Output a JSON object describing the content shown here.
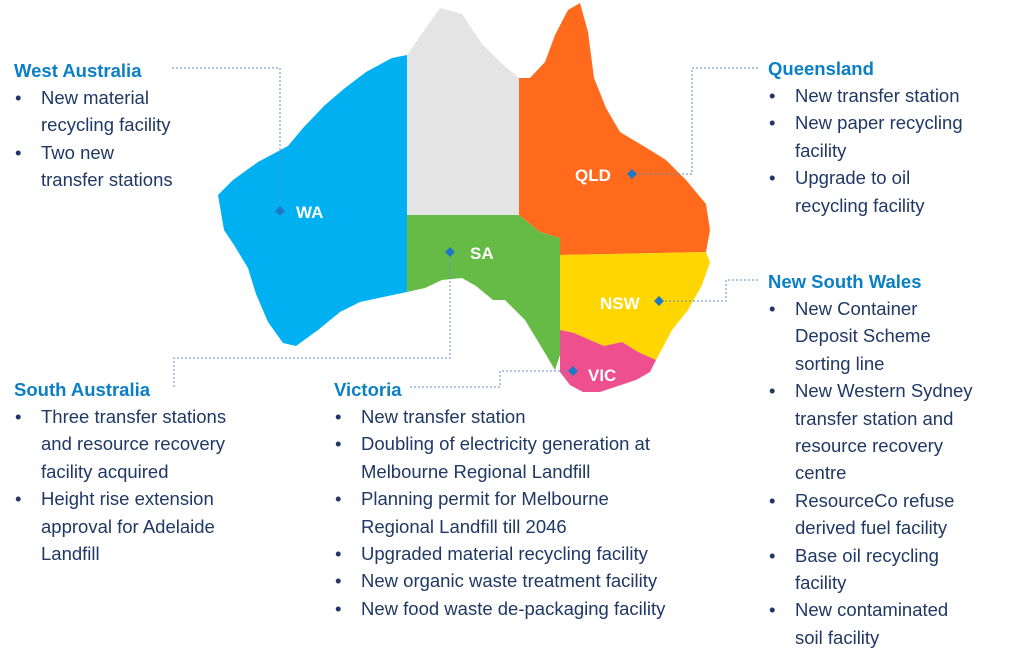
{
  "colors": {
    "wa": "#00b0f0",
    "nt": "#e4e4e4",
    "qld": "#ff6a1c",
    "sa": "#66bb46",
    "nsw": "#ffd600",
    "vic": "#ee4f8e",
    "marker": "#1f77c8",
    "leader": "#5a8fc4",
    "title": "#0a7fc6",
    "text": "#1f3864"
  },
  "states": {
    "wa": "WA",
    "qld": "QLD",
    "sa": "SA",
    "nsw": "NSW",
    "vic": "VIC"
  },
  "west_australia": {
    "title": "West Australia",
    "items": [
      [
        "New material",
        "recycling facility"
      ],
      [
        "Two new",
        "transfer stations"
      ]
    ]
  },
  "queensland": {
    "title": "Queensland",
    "items": [
      [
        "New transfer station"
      ],
      [
        "New paper recycling",
        "facility"
      ],
      [
        "Upgrade to oil",
        "recycling facility"
      ]
    ]
  },
  "new_south_wales": {
    "title": "New South Wales",
    "items": [
      [
        "New Container",
        "Deposit Scheme",
        "sorting line"
      ],
      [
        "New Western Sydney",
        "transfer station and",
        "resource recovery",
        "centre"
      ],
      [
        "ResourceCo refuse",
        "derived fuel facility"
      ],
      [
        "Base oil recycling",
        "facility"
      ],
      [
        "New contaminated",
        "soil facility"
      ]
    ]
  },
  "south_australia": {
    "title": "South Australia",
    "items": [
      [
        "Three transfer stations",
        "and resource recovery",
        "facility acquired"
      ],
      [
        "Height rise extension",
        "approval for Adelaide",
        "Landfill"
      ]
    ]
  },
  "victoria": {
    "title": "Victoria",
    "items": [
      [
        "New transfer station"
      ],
      [
        "Doubling of electricity generation at",
        "Melbourne Regional Landfill"
      ],
      [
        "Planning permit for Melbourne",
        "Regional Landfill till 2046"
      ],
      [
        "Upgraded material recycling facility"
      ],
      [
        "New organic waste treatment facility"
      ],
      [
        "New food waste de-packaging facility"
      ]
    ]
  }
}
